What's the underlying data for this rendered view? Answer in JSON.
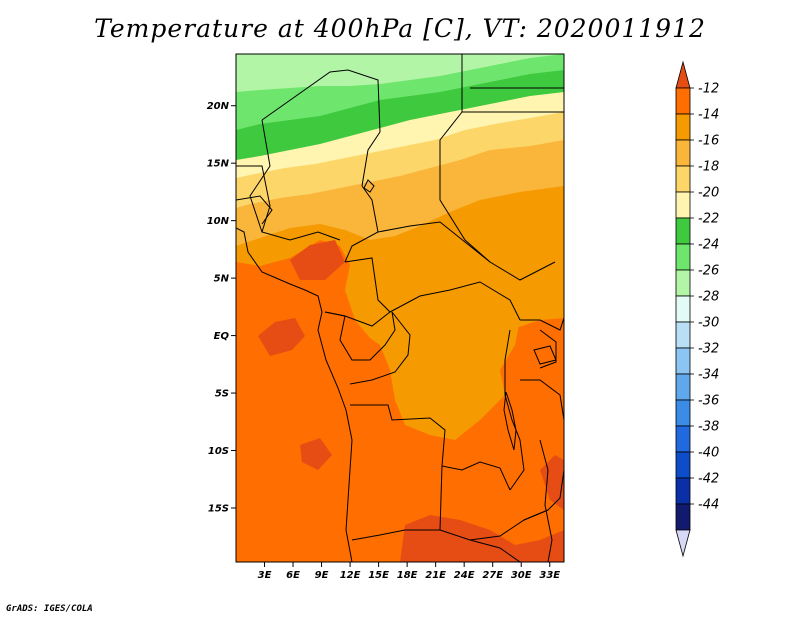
{
  "title": "Temperature at 400hPa [C], VT: 2020011912",
  "credit": "GrADS: IGES/COLA",
  "map": {
    "lat_labels": [
      "20N",
      "15N",
      "10N",
      "5N",
      "EQ",
      "5S",
      "10S",
      "15S"
    ],
    "lat_values": [
      20,
      15,
      10,
      5,
      0,
      -5,
      -10,
      -15
    ],
    "lon_labels": [
      "3E",
      "6E",
      "9E",
      "12E",
      "15E",
      "18E",
      "21E",
      "24E",
      "27E",
      "30E",
      "33E"
    ],
    "lon_values": [
      3,
      6,
      9,
      12,
      15,
      18,
      21,
      24,
      27,
      30,
      33
    ],
    "lon_range": [
      0,
      34.5
    ],
    "lat_range": [
      -19.7,
      24.5
    ]
  },
  "colorbar": {
    "labels": [
      "-12",
      "-14",
      "-16",
      "-18",
      "-20",
      "-22",
      "-24",
      "-26",
      "-28",
      "-30",
      "-32",
      "-34",
      "-36",
      "-38",
      "-40",
      "-42",
      "-44"
    ],
    "colors": [
      "#e64d14",
      "#ff6e00",
      "#f59a00",
      "#f9b63a",
      "#fdd66a",
      "#fff4b0",
      "#3ec93e",
      "#6ee66e",
      "#b3f5a6",
      "#e3fbf7",
      "#b8dff5",
      "#8cc5f2",
      "#5fa8ec",
      "#3a8ce6",
      "#2069de",
      "#0e4dc9",
      "#0a2fa6",
      "#121a6e",
      "#d8d8f8"
    ]
  }
}
